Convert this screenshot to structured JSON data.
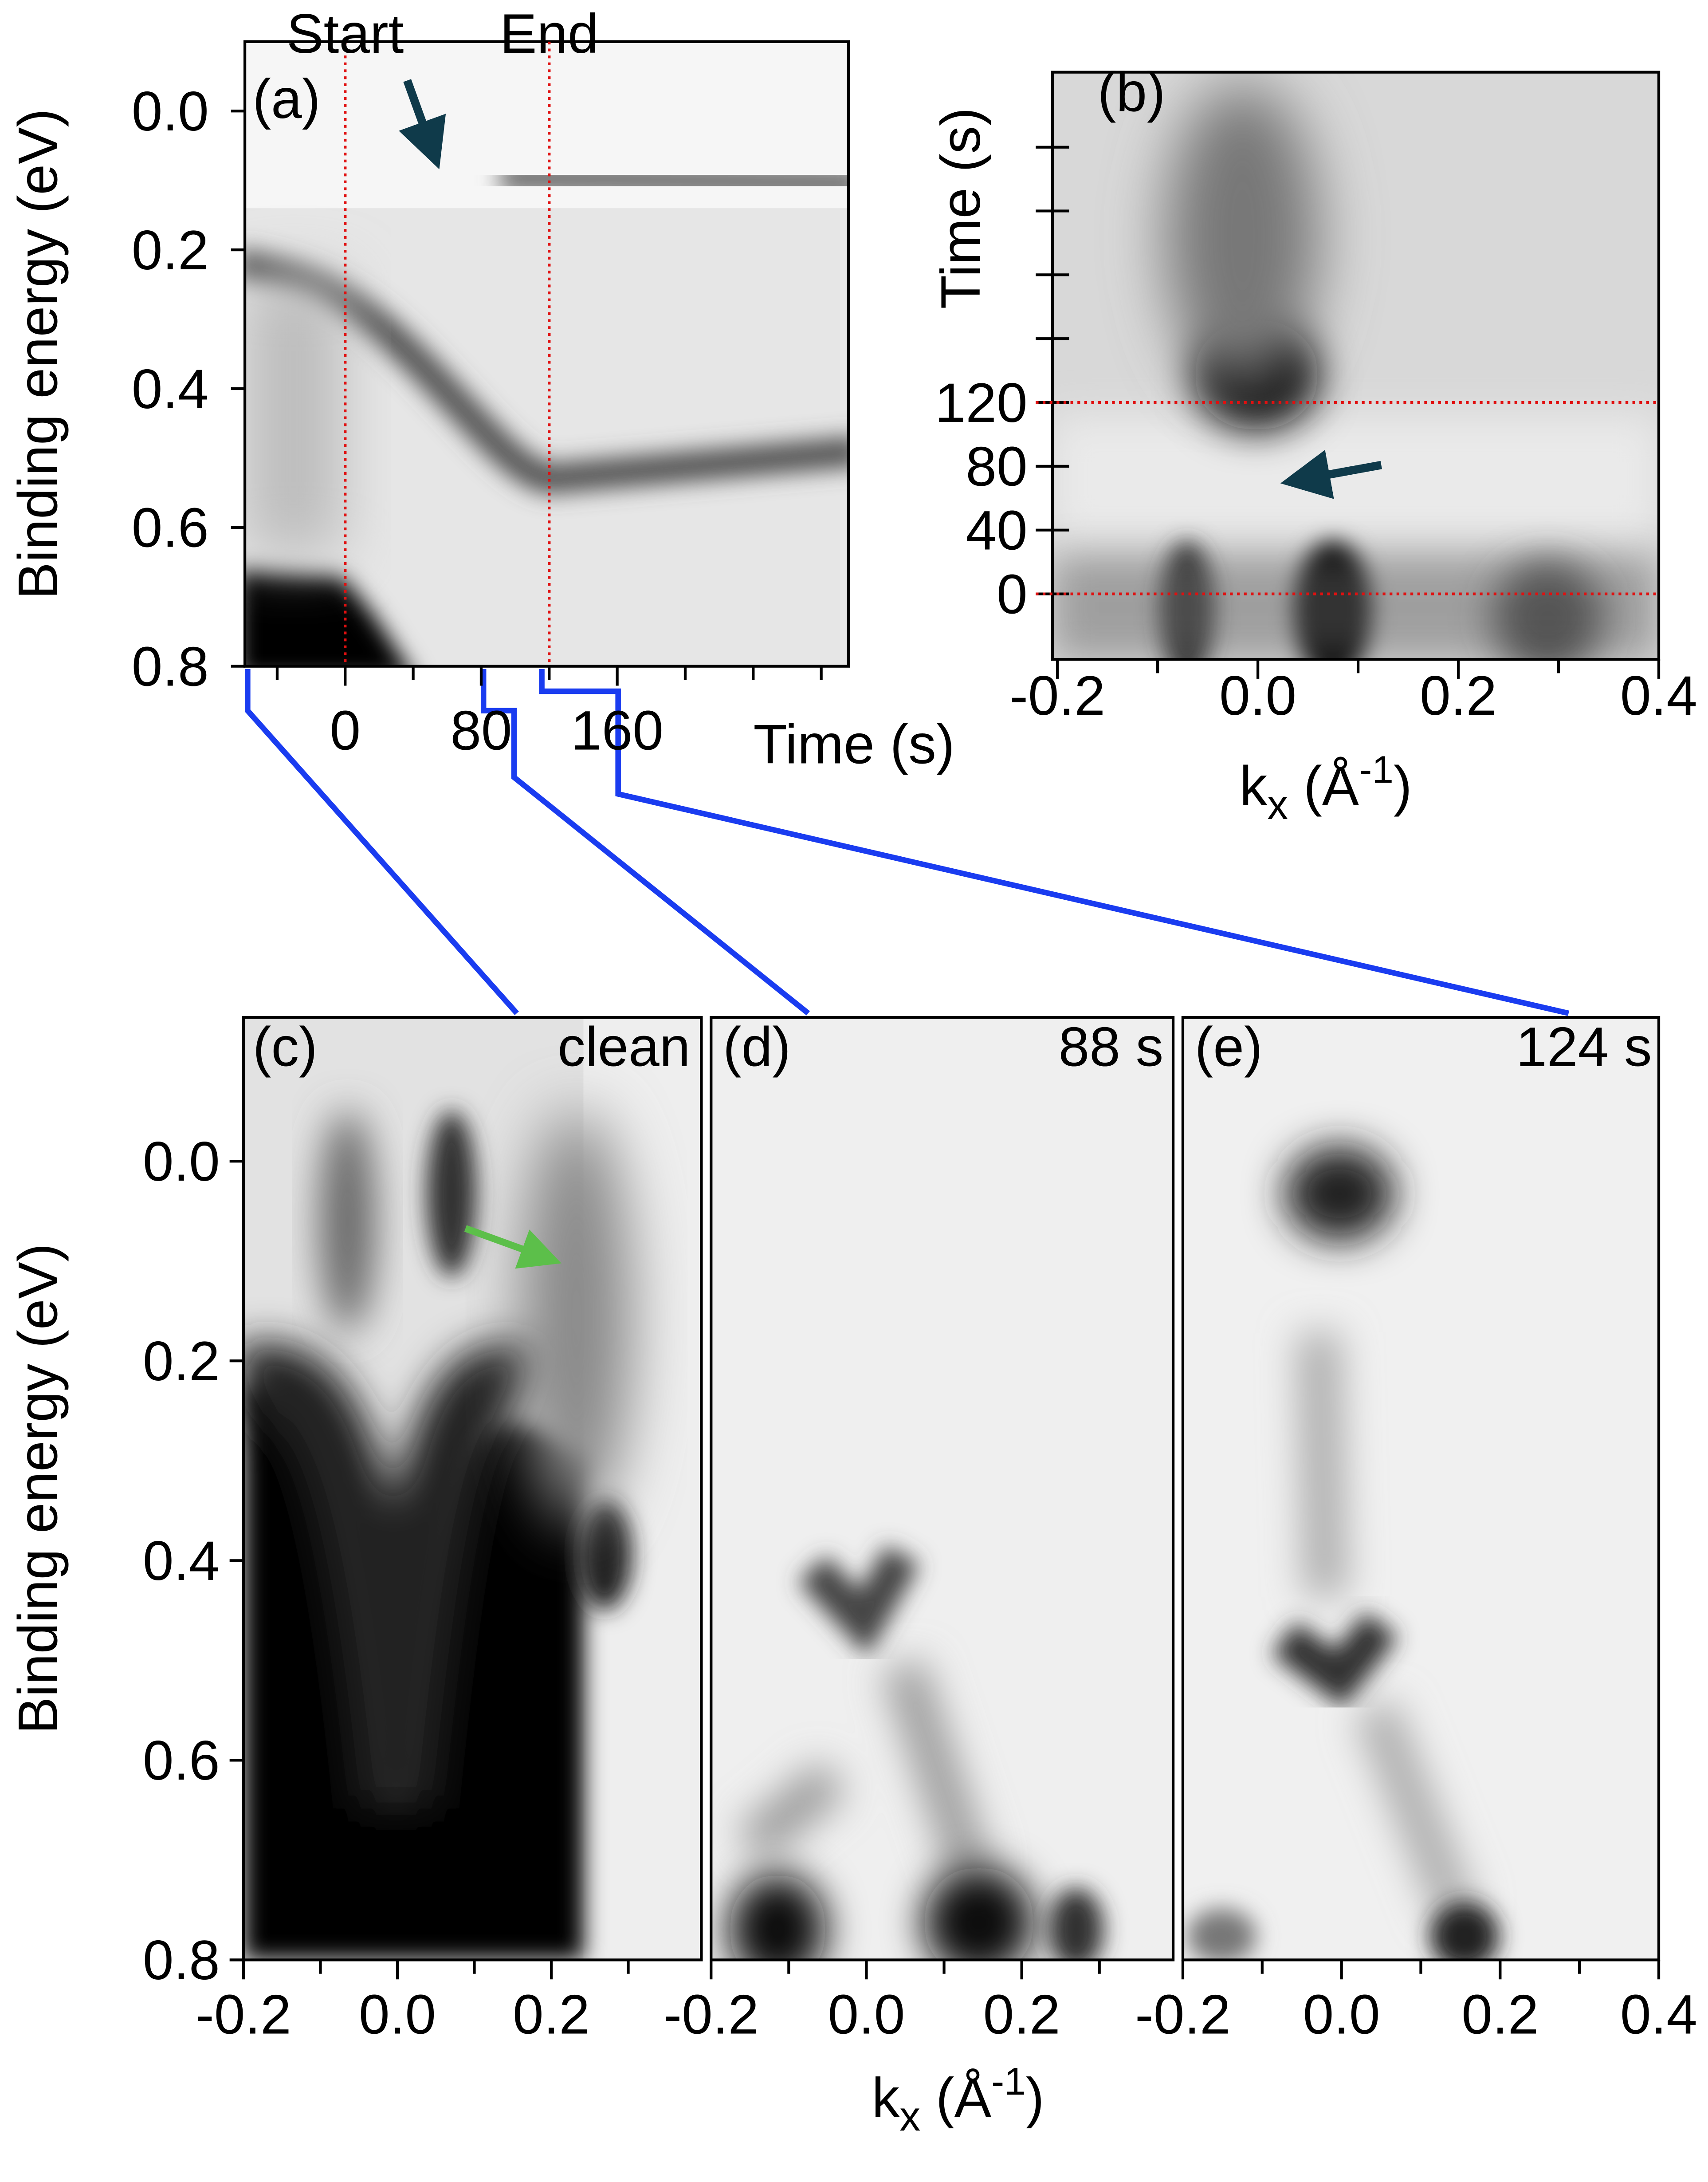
{
  "chart_data": [
    {
      "type": "image",
      "title": "(a)",
      "ylabel": "Binding energy (eV)",
      "xlabel": [
        "Time (s)"
      ],
      "ylim": [
        0.8,
        -0.1
      ],
      "yticks": [
        {
          "value": 0,
          "label": "0.0"
        },
        0.2,
        0.4,
        0.6,
        0.8
      ],
      "xlim": [
        -59,
        296
      ],
      "xticks": [
        0,
        80,
        160
      ],
      "xticks_minor": [
        -40,
        40,
        120,
        200,
        240,
        280
      ],
      "markers": {
        "axis": "x",
        "values": [
          0,
          120
        ],
        "labels": [
          "Start",
          "End"
        ]
      }
    },
    {
      "type": "image",
      "title": "(b)",
      "ylabel": "Time (s)",
      "xlabel": [
        "k",
        "x",
        " (Å",
        "-1",
        ")"
      ],
      "ylim": [
        -41,
        327
      ],
      "yticks": [
        0,
        40,
        80,
        120
      ],
      "yticks_minor": [
        160,
        200,
        240,
        280
      ],
      "xlim": [
        -0.205,
        0.4
      ],
      "xticks": [
        -0.2,
        {
          "value": 0,
          "label": "0.0"
        },
        0.2,
        0.4
      ],
      "xticks_minor": [
        -0.1,
        0.1,
        0.3
      ],
      "markers": {
        "axis": "y",
        "values": [
          0,
          120
        ]
      }
    },
    {
      "type": "image",
      "title": "(c)",
      "annotation": "clean",
      "ylabel": "Binding energy (eV)",
      "ylim": [
        0.8,
        -0.144
      ],
      "yticks": [
        {
          "value": 0,
          "label": "0.0"
        },
        0.2,
        0.4,
        0.6,
        0.8
      ],
      "xlim": [
        -0.2,
        0.395
      ],
      "xticks": [
        -0.2,
        {
          "value": 0,
          "label": "0.0"
        },
        0.2
      ],
      "xticks_minor": [
        -0.1,
        0.1,
        0.3
      ]
    },
    {
      "type": "image",
      "title": "(d)",
      "annotation": "88 s",
      "xlabel": [
        "k",
        "x",
        " (Å",
        "-1",
        ")"
      ],
      "ylim": [
        0.8,
        -0.144
      ],
      "xlim": [
        -0.2,
        0.395
      ],
      "xticks": [
        -0.2,
        {
          "value": 0,
          "label": "0.0"
        },
        0.2
      ],
      "xticks_minor": [
        -0.1,
        0.1,
        0.3
      ]
    },
    {
      "type": "image",
      "title": "(e)",
      "annotation": "124 s",
      "ylim": [
        0.8,
        -0.144
      ],
      "xlim": [
        -0.2,
        0.4
      ],
      "xticks": [
        -0.2,
        {
          "value": 0,
          "label": "0.0"
        },
        0.2,
        0.4
      ],
      "xticks_minor": [
        -0.1,
        0.1,
        0.3
      ]
    }
  ]
}
